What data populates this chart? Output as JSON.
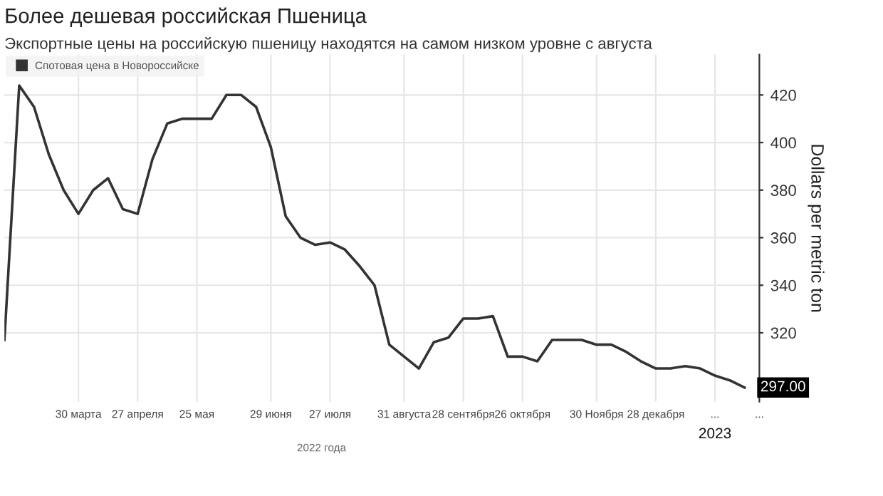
{
  "chart_data": {
    "type": "line",
    "title": "Более дешевая российская Пшеница",
    "subtitle": "Экспортные цены на российскую пшеницу находятся на самом низком уровне с августа",
    "xlabel": "2022 года",
    "ylabel": "Dollars per metric ton",
    "x": [
      "2022-02-23",
      "2022-03-02",
      "2022-03-09",
      "2022-03-16",
      "2022-03-23",
      "2022-03-30",
      "2022-04-06",
      "2022-04-13",
      "2022-04-20",
      "2022-04-27",
      "2022-05-04",
      "2022-05-11",
      "2022-05-18",
      "2022-05-25",
      "2022-06-01",
      "2022-06-08",
      "2022-06-15",
      "2022-06-22",
      "2022-06-29",
      "2022-07-06",
      "2022-07-13",
      "2022-07-20",
      "2022-07-27",
      "2022-08-03",
      "2022-08-10",
      "2022-08-17",
      "2022-08-24",
      "2022-08-31",
      "2022-09-07",
      "2022-09-14",
      "2022-09-21",
      "2022-09-28",
      "2022-10-05",
      "2022-10-12",
      "2022-10-19",
      "2022-10-26",
      "2022-11-02",
      "2022-11-09",
      "2022-11-16",
      "2022-11-23",
      "2022-11-30",
      "2022-12-07",
      "2022-12-14",
      "2022-12-21",
      "2022-12-28",
      "2023-01-04",
      "2023-01-11",
      "2023-01-18",
      "2023-01-25",
      "2023-02-01",
      "2023-02-08"
    ],
    "series": [
      {
        "name": "Спотовая цена в Новороссийске",
        "color": "#333333",
        "values": [
          317,
          424,
          415,
          395,
          380,
          370,
          380,
          385,
          372,
          370,
          393,
          408,
          410,
          410,
          410,
          420,
          420,
          415,
          398,
          369,
          360,
          357,
          358,
          355,
          348,
          340,
          315,
          310,
          305,
          316,
          318,
          326,
          326,
          327,
          310,
          310,
          308,
          317,
          317,
          317,
          315,
          315,
          312,
          308,
          305,
          305,
          306,
          305,
          302,
          300,
          297
        ],
        "value_labels": [
          null,
          null,
          null,
          null,
          null,
          null,
          null,
          null,
          null,
          null,
          null,
          null,
          null,
          null,
          null,
          null,
          null,
          null,
          null,
          null,
          null,
          null,
          null,
          null,
          null,
          null,
          null,
          null,
          null,
          null,
          null,
          null,
          null,
          null,
          null,
          null,
          null,
          null,
          null,
          null,
          null,
          null,
          null,
          null,
          null,
          null,
          null,
          null,
          null,
          null,
          "297.00"
        ]
      }
    ],
    "xlim": [
      "2022-02-23",
      "2023-02-15"
    ],
    "xticks": [
      {
        "value": "2022-03-30",
        "label": "30 марта"
      },
      {
        "value": "2022-04-27",
        "label": "27 апреля"
      },
      {
        "value": "2022-05-25",
        "label": "25 мая"
      },
      {
        "value": "2022-06-29",
        "label": "29 июня"
      },
      {
        "value": "2022-07-27",
        "label": "27 июля"
      },
      {
        "value": "2022-08-31",
        "label": "31 августа"
      },
      {
        "value": "2022-09-28",
        "label": "28 сентября"
      },
      {
        "value": "2022-10-26",
        "label": "26 октября"
      },
      {
        "value": "2022-11-30",
        "label": "30 Ноября"
      },
      {
        "value": "2022-12-28",
        "label": "28 декабря"
      },
      {
        "value": "2023-01-25",
        "label": "..."
      },
      {
        "value": "2023-02-15",
        "label": "..."
      }
    ],
    "ylim": [
      291,
      437
    ],
    "yticks": [
      320,
      340,
      360,
      380,
      400,
      420
    ],
    "annotations": [
      "2023"
    ],
    "grid": true,
    "legend": "top left",
    "marker": "none",
    "line_style": "solid"
  }
}
